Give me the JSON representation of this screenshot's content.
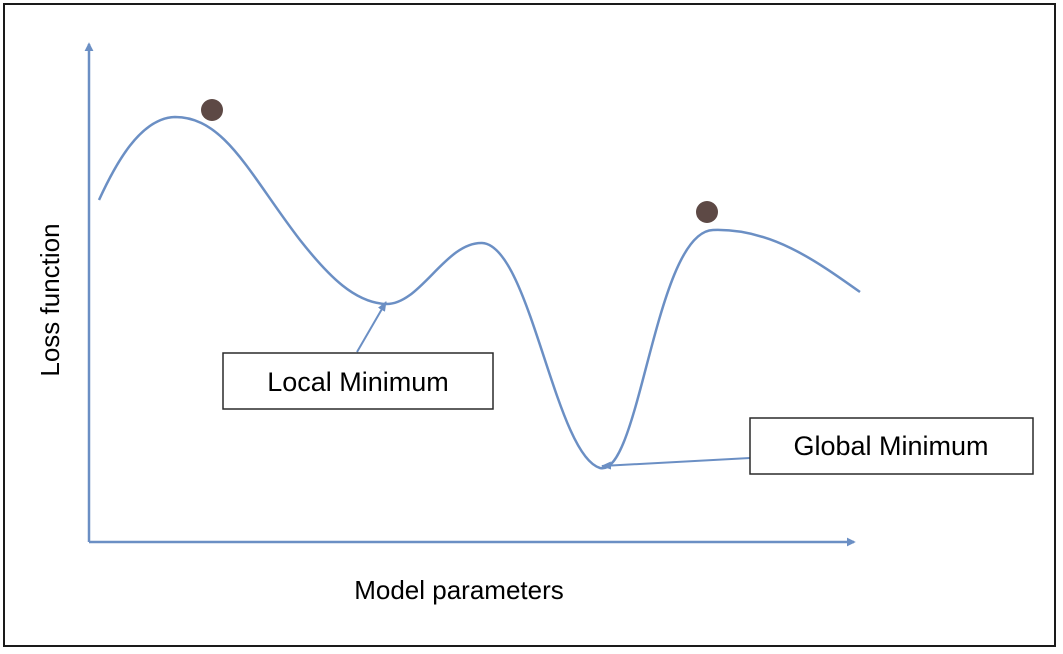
{
  "diagram": {
    "x_axis_label": "Model parameters",
    "y_axis_label": "Loss function",
    "callouts": {
      "local": "Local Minimum",
      "global": "Global Minimum"
    }
  },
  "colors": {
    "curve": "#6b8fc4",
    "axis": "#6b8fc4",
    "ball": "#5d4945",
    "box_border": "#2a2a2a",
    "frame": "#1a1a1a"
  },
  "icons": {
    "ball": "filled-circle"
  }
}
